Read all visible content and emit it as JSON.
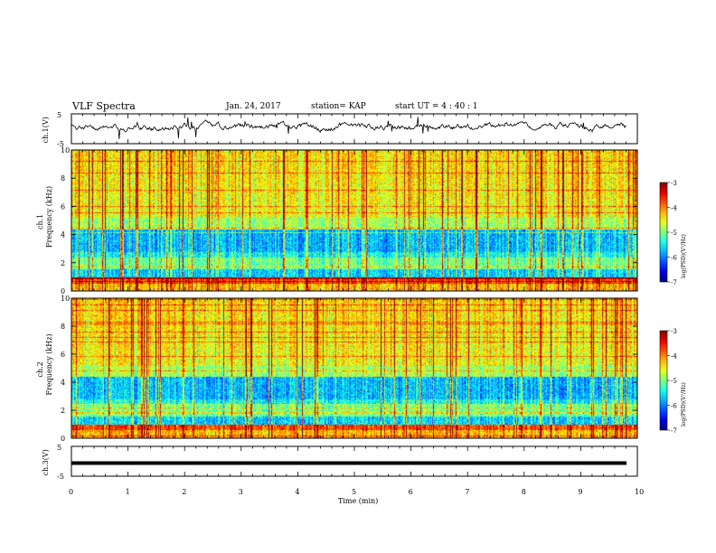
{
  "header": {
    "title": "VLF Spectra",
    "date": "Jan. 24, 2017",
    "station": "station= KAP",
    "start": "start UT = 4 : 40 : 1"
  },
  "chart_data": [
    {
      "type": "line",
      "panel": "ch1-waveform",
      "ylabel": "ch.1(V)",
      "ylim": [
        -5,
        5
      ],
      "yticks": [
        "5",
        "-5"
      ],
      "xlim": [
        0,
        10
      ]
    },
    {
      "type": "heatmap",
      "panel": "ch1-spectrogram",
      "ylabel_line1": "ch.1",
      "ylabel_line2": "Frequency (kHz)",
      "ylim": [
        0,
        10
      ],
      "yticks": [
        "0",
        "2",
        "4",
        "6",
        "8",
        "10"
      ],
      "xlim": [
        0,
        10
      ],
      "colorbar": {
        "label": "log(PSD)(V²/Hz)",
        "range": [
          -7,
          -3
        ],
        "ticks": [
          "-3",
          "-4",
          "-5",
          "-6",
          "-7"
        ]
      }
    },
    {
      "type": "heatmap",
      "panel": "ch2-spectrogram",
      "ylabel_line1": "ch.2",
      "ylabel_line2": "Frequency (kHz)",
      "ylim": [
        0,
        10
      ],
      "yticks": [
        "0",
        "2",
        "4",
        "6",
        "8",
        "10"
      ],
      "xlim": [
        0,
        10
      ],
      "colorbar": {
        "label": "log(PSD)(V²/Hz)",
        "range": [
          -7,
          -3
        ],
        "ticks": [
          "-3",
          "-4",
          "-5",
          "-6",
          "-7"
        ]
      }
    },
    {
      "type": "line",
      "panel": "ch3-waveform",
      "ylabel": "ch.3(V)",
      "ylim": [
        -5,
        5
      ],
      "yticks": [
        "5",
        "-5"
      ],
      "xlim": [
        0,
        10
      ],
      "xlabel": "Time (min)",
      "xticks": [
        "0",
        "1",
        "2",
        "3",
        "4",
        "5",
        "6",
        "7",
        "8",
        "9",
        "10"
      ]
    }
  ]
}
